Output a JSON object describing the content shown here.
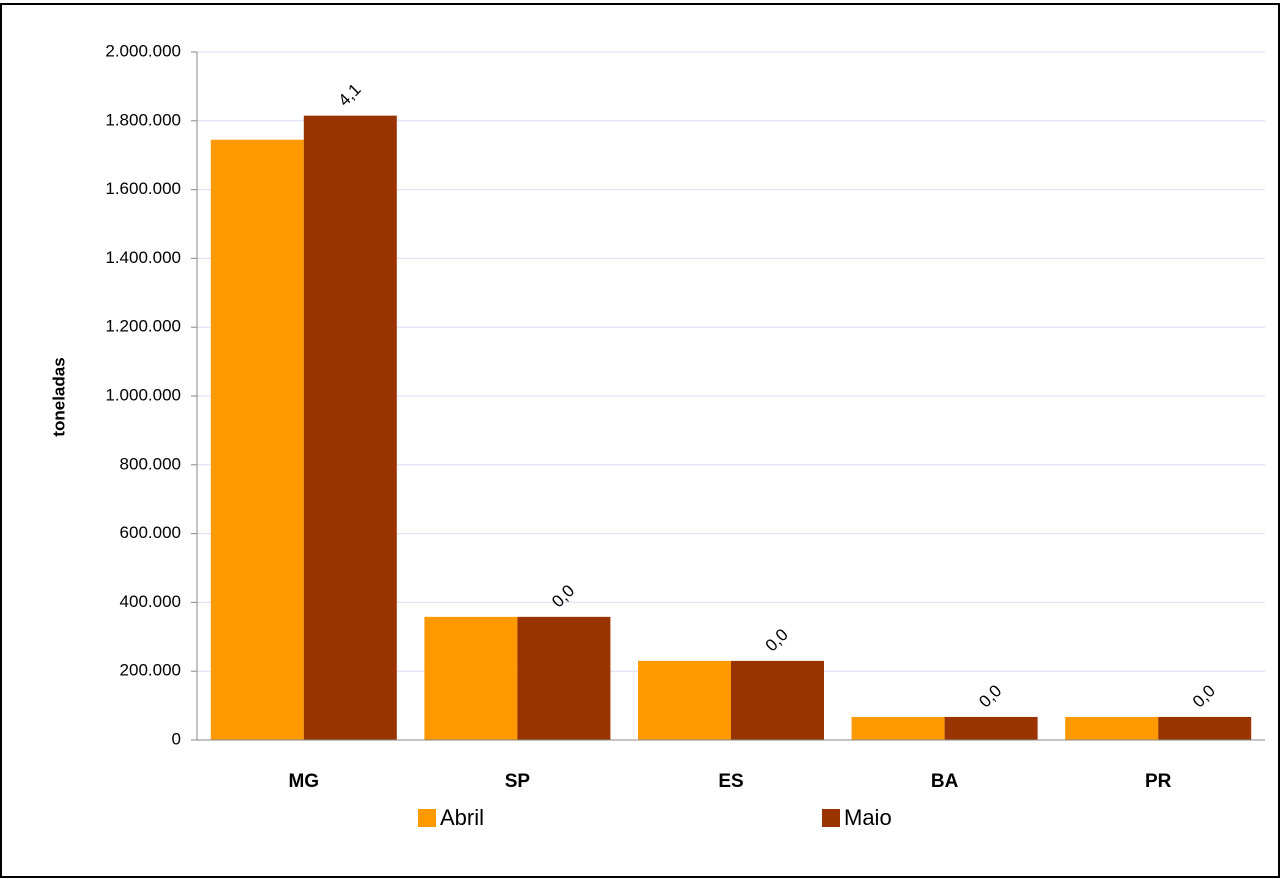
{
  "chart_data": {
    "type": "bar",
    "categories": [
      "MG",
      "SP",
      "ES",
      "BA",
      "PR"
    ],
    "series": [
      {
        "name": "Abril",
        "color": "#ff9900",
        "values": [
          1745000,
          358000,
          230000,
          67000,
          67000
        ]
      },
      {
        "name": "Maio",
        "color": "#993300",
        "values": [
          1815000,
          358000,
          230000,
          67000,
          67000
        ]
      }
    ],
    "change_labels": [
      "4,1",
      "0,0",
      "0,0",
      "0,0",
      "0,0"
    ],
    "ylabel": "toneladas",
    "ylim": [
      0,
      2000000
    ],
    "yticks": [
      0,
      {
        "value": 200000,
        "label": "200.000"
      },
      {
        "value": 400000,
        "label": "400.000"
      },
      {
        "value": 600000,
        "label": "600.000"
      },
      {
        "value": 800000,
        "label": "800.000"
      },
      {
        "value": 1000000,
        "label": "1.000.000"
      },
      {
        "value": 1200000,
        "label": "1.200.000"
      },
      {
        "value": 1400000,
        "label": "1.400.000"
      },
      {
        "value": 1600000,
        "label": "1.600.000"
      },
      {
        "value": 1800000,
        "label": "1.800.000"
      },
      {
        "value": 2000000,
        "label": "2.000.000"
      }
    ],
    "grid": true
  }
}
